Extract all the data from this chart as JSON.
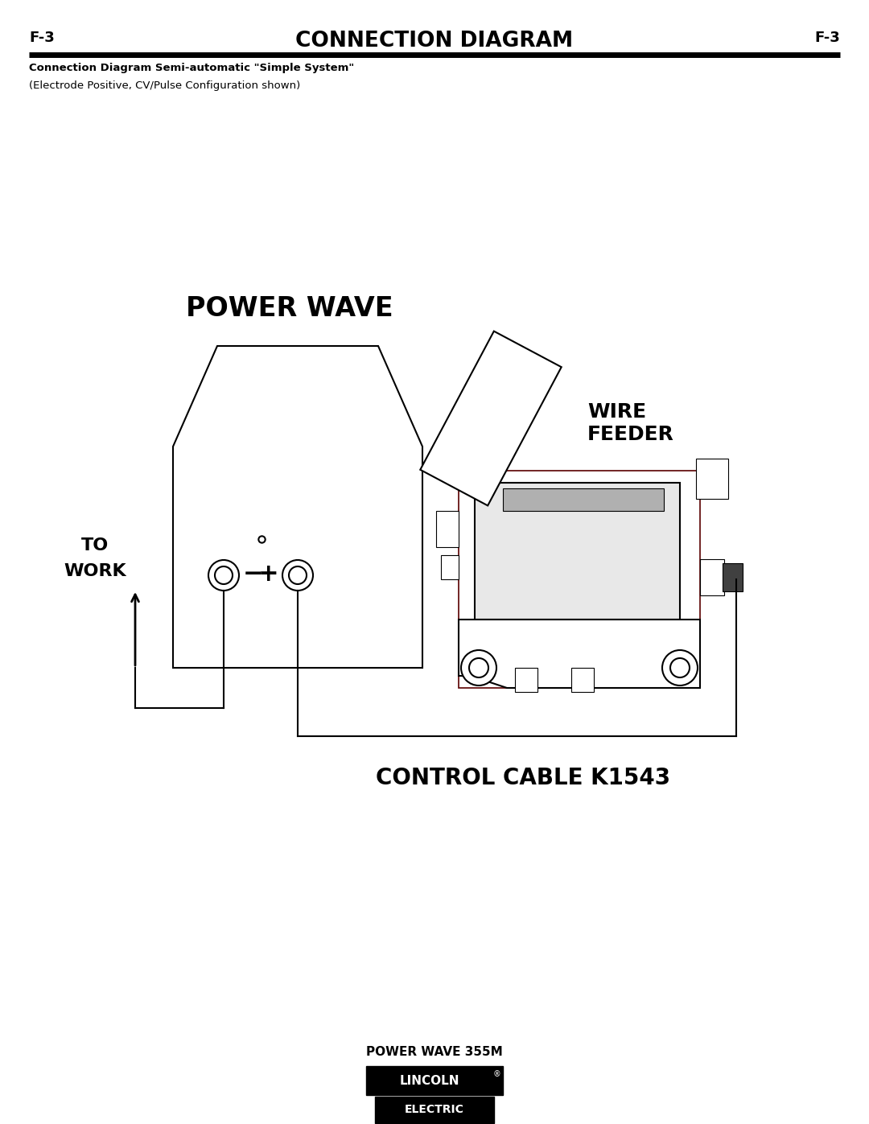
{
  "title": "CONNECTION DIAGRAM",
  "page_ref": "F-3",
  "subtitle": "Connection Diagram Semi-automatic \"Simple System\"",
  "subtitle2": "(Electrode Positive, CV/Pulse Configuration shown)",
  "power_wave_label": "POWER WAVE",
  "to_work_label1": "TO",
  "to_work_label2": "WORK",
  "wire_feeder_label": "WIRE\nFEEDER",
  "control_cable_label": "CONTROL CABLE K1543",
  "footer_label": "POWER WAVE 355M",
  "lincoln_line1": "LINCOLN",
  "reg_mark": "®",
  "lincoln_line2": "ELECTRIC",
  "bg_color": "#ffffff",
  "line_color": "#000000",
  "lw": 1.5
}
